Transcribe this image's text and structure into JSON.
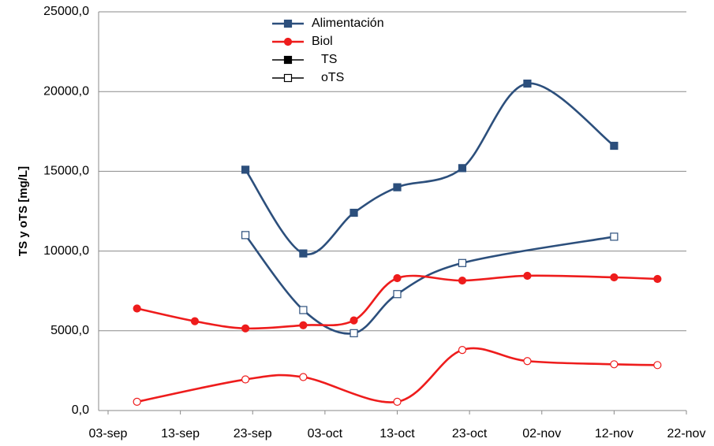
{
  "chart_data": {
    "type": "line",
    "ylabel": "TS y oTS [mg/L]",
    "xlim": [
      "09-03",
      "11-22"
    ],
    "xticks": [
      {
        "value": "09-03",
        "label": "03-sep"
      },
      {
        "value": "09-13",
        "label": "13-sep"
      },
      {
        "value": "09-23",
        "label": "23-sep"
      },
      {
        "value": "10-03",
        "label": "03-oct"
      },
      {
        "value": "10-13",
        "label": "13-oct"
      },
      {
        "value": "10-23",
        "label": "23-oct"
      },
      {
        "value": "11-02",
        "label": "02-nov"
      },
      {
        "value": "11-12",
        "label": "12-nov"
      },
      {
        "value": "11-22",
        "label": "22-nov"
      }
    ],
    "ylim": [
      0,
      25000
    ],
    "yticks": [
      {
        "value": 0,
        "label": "0,0"
      },
      {
        "value": 5000,
        "label": "5000,0"
      },
      {
        "value": 10000,
        "label": "10000,0"
      },
      {
        "value": 15000,
        "label": "15000,0"
      },
      {
        "value": 20000,
        "label": "20000,0"
      },
      {
        "value": 25000,
        "label": "25000,0"
      }
    ],
    "grid": true,
    "measures": [
      {
        "name": "TS",
        "marker_fill": "filled"
      },
      {
        "name": "oTS",
        "marker_fill": "open"
      }
    ],
    "series": [
      {
        "name": "Alimentación",
        "color": "#2c4f7c",
        "marker": "square",
        "lines": [
          {
            "x": [
              "09-22",
              "09-30",
              "10-07",
              "10-13",
              "10-22",
              "10-31",
              "11-12"
            ],
            "values": [
              15100,
              9850,
              12400,
              14000,
              15200,
              20500,
              16600
            ]
          },
          {
            "x": [
              "09-22",
              "09-30",
              "10-07",
              "10-13",
              "10-22",
              "11-12"
            ],
            "values": [
              11000,
              6300,
              4850,
              7300,
              9250,
              10900
            ]
          }
        ]
      },
      {
        "name": "Biol",
        "color": "#ee1c1c",
        "marker": "circle",
        "lines": [
          {
            "x": [
              "09-07",
              "09-15",
              "09-22",
              "09-30",
              "10-07",
              "10-13",
              "10-22",
              "10-31",
              "11-12",
              "11-18"
            ],
            "values": [
              6400,
              5600,
              5150,
              5350,
              5650,
              8300,
              8150,
              8450,
              8350,
              8250
            ]
          },
          {
            "x": [
              "09-07",
              "09-22",
              "09-30",
              "10-13",
              "10-22",
              "10-31",
              "11-12",
              "11-18"
            ],
            "values": [
              550,
              1950,
              2100,
              550,
              3800,
              3100,
              2900,
              2850
            ]
          }
        ]
      }
    ]
  }
}
